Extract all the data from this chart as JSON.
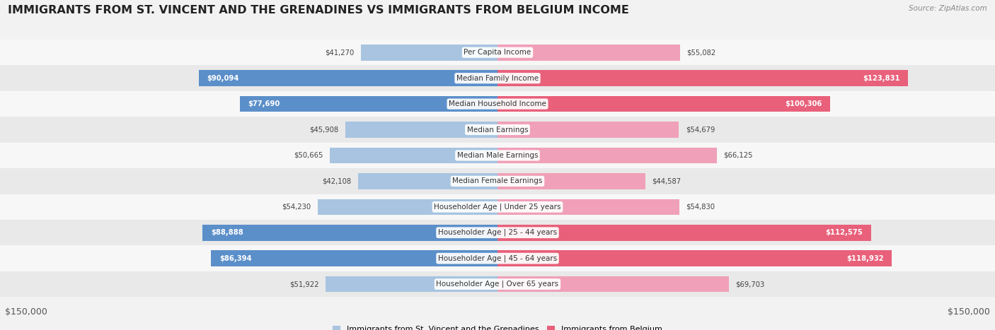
{
  "title": "IMMIGRANTS FROM ST. VINCENT AND THE GRENADINES VS IMMIGRANTS FROM BELGIUM INCOME",
  "source": "Source: ZipAtlas.com",
  "categories": [
    "Per Capita Income",
    "Median Family Income",
    "Median Household Income",
    "Median Earnings",
    "Median Male Earnings",
    "Median Female Earnings",
    "Householder Age | Under 25 years",
    "Householder Age | 25 - 44 years",
    "Householder Age | 45 - 64 years",
    "Householder Age | Over 65 years"
  ],
  "vincent_values": [
    41270,
    90094,
    77690,
    45908,
    50665,
    42108,
    54230,
    88888,
    86394,
    51922
  ],
  "belgium_values": [
    55082,
    123831,
    100306,
    54679,
    66125,
    44587,
    54830,
    112575,
    118932,
    69703
  ],
  "vincent_labels": [
    "$41,270",
    "$90,094",
    "$77,690",
    "$45,908",
    "$50,665",
    "$42,108",
    "$54,230",
    "$88,888",
    "$86,394",
    "$51,922"
  ],
  "belgium_labels": [
    "$55,082",
    "$123,831",
    "$100,306",
    "$54,679",
    "$66,125",
    "$44,587",
    "$54,830",
    "$112,575",
    "$118,932",
    "$69,703"
  ],
  "vincent_color_light": "#a8c4e0",
  "vincent_color_dark": "#5b8fc9",
  "belgium_color_light": "#f0a0b8",
  "belgium_color_dark": "#e8607a",
  "max_value": 150000,
  "bar_height": 0.62,
  "bg_color": "#f2f2f2",
  "row_bg_even": "#f7f7f7",
  "row_bg_odd": "#e9e9e9",
  "legend_label_vincent": "Immigrants from St. Vincent and the Grenadines",
  "legend_label_belgium": "Immigrants from Belgium",
  "xlabel_left": "$150,000",
  "xlabel_right": "$150,000",
  "title_fontsize": 11.5,
  "label_fontsize": 7.2,
  "category_fontsize": 7.5,
  "source_fontsize": 7.5,
  "legend_fontsize": 8.0,
  "vincent_threshold": 75000,
  "belgium_threshold": 95000
}
